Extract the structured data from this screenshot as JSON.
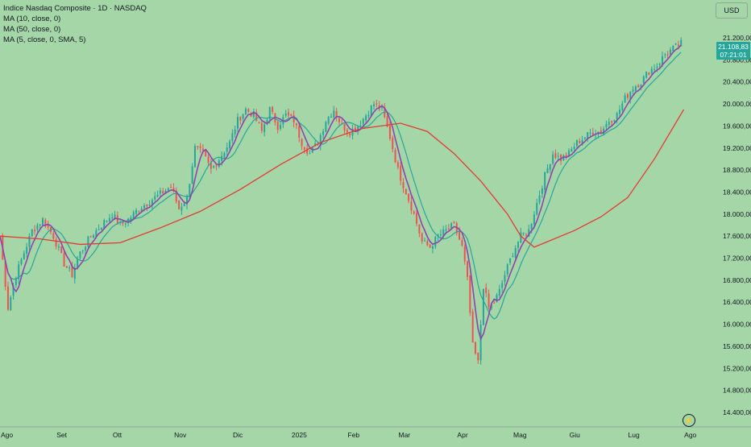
{
  "header": {
    "title": "Indice Nasdaq Composite · 1D · NASDAQ",
    "ma_lines": [
      "MA (10, close, 0)",
      "MA (50, close, 0)",
      "MA (5, close, 0, SMA, 5)"
    ]
  },
  "currency_label": "USD",
  "last_price": {
    "value": "21.108,83",
    "countdown": "07:21:01"
  },
  "colors": {
    "background": "#a5d6a7",
    "up": "#26a69a",
    "down": "#ef5350",
    "ma10": "#26a69a",
    "ma50": "#e53935",
    "ma5": "#8e44ad",
    "text": "#131722"
  },
  "icons": {
    "replay": "lightning-icon"
  },
  "chart_data": {
    "type": "candlestick",
    "title": "Indice Nasdaq Composite · 1D · NASDAQ",
    "y_ticks": [
      "21.200,00",
      "20.800,00",
      "20.400,00",
      "20.000,00",
      "19.600,00",
      "19.200,00",
      "18.800,00",
      "18.400,00",
      "18.000,00",
      "17.600,00",
      "17.200,00",
      "16.800,00",
      "16.400,00",
      "16.000,00",
      "15.600,00",
      "15.200,00",
      "14.800,00",
      "14.400,00"
    ],
    "y_tick_values": [
      21200,
      20800,
      20400,
      20000,
      19600,
      19200,
      18800,
      18400,
      18000,
      17600,
      17200,
      16800,
      16400,
      16000,
      15600,
      15200,
      14800,
      14400
    ],
    "x_ticks": [
      "Ago",
      "Set",
      "Ott",
      "Nov",
      "Dic",
      "2025",
      "Feb",
      "Mar",
      "Apr",
      "Mag",
      "Giu",
      "Lug",
      "Ago"
    ],
    "x_tick_days": [
      0,
      23,
      44,
      67,
      89,
      111,
      132,
      151,
      173,
      194,
      215,
      237,
      258
    ],
    "ylim": [
      14250,
      21450
    ],
    "xlim": [
      0,
      267
    ],
    "close_series": [
      {
        "d": 0,
        "v": 17600
      },
      {
        "d": 3,
        "v": 16300
      },
      {
        "d": 6,
        "v": 16900
      },
      {
        "d": 9,
        "v": 17300
      },
      {
        "d": 12,
        "v": 17700
      },
      {
        "d": 16,
        "v": 17900
      },
      {
        "d": 20,
        "v": 17600
      },
      {
        "d": 24,
        "v": 17100
      },
      {
        "d": 27,
        "v": 16900
      },
      {
        "d": 30,
        "v": 17300
      },
      {
        "d": 34,
        "v": 17600
      },
      {
        "d": 38,
        "v": 17800
      },
      {
        "d": 42,
        "v": 18000
      },
      {
        "d": 45,
        "v": 17800
      },
      {
        "d": 48,
        "v": 17900
      },
      {
        "d": 52,
        "v": 18100
      },
      {
        "d": 55,
        "v": 18200
      },
      {
        "d": 58,
        "v": 18300
      },
      {
        "d": 61,
        "v": 18400
      },
      {
        "d": 64,
        "v": 18500
      },
      {
        "d": 67,
        "v": 18100
      },
      {
        "d": 70,
        "v": 18300
      },
      {
        "d": 73,
        "v": 19200
      },
      {
        "d": 76,
        "v": 19100
      },
      {
        "d": 79,
        "v": 18800
      },
      {
        "d": 82,
        "v": 19000
      },
      {
        "d": 86,
        "v": 19300
      },
      {
        "d": 89,
        "v": 19700
      },
      {
        "d": 92,
        "v": 19900
      },
      {
        "d": 95,
        "v": 19800
      },
      {
        "d": 98,
        "v": 19500
      },
      {
        "d": 101,
        "v": 19900
      },
      {
        "d": 104,
        "v": 19600
      },
      {
        "d": 107,
        "v": 19800
      },
      {
        "d": 110,
        "v": 19700
      },
      {
        "d": 113,
        "v": 19300
      },
      {
        "d": 116,
        "v": 19100
      },
      {
        "d": 119,
        "v": 19300
      },
      {
        "d": 122,
        "v": 19700
      },
      {
        "d": 125,
        "v": 19900
      },
      {
        "d": 128,
        "v": 19600
      },
      {
        "d": 131,
        "v": 19500
      },
      {
        "d": 134,
        "v": 19600
      },
      {
        "d": 137,
        "v": 19800
      },
      {
        "d": 140,
        "v": 20000
      },
      {
        "d": 143,
        "v": 19900
      },
      {
        "d": 146,
        "v": 19400
      },
      {
        "d": 149,
        "v": 18800
      },
      {
        "d": 152,
        "v": 18400
      },
      {
        "d": 155,
        "v": 18000
      },
      {
        "d": 158,
        "v": 17500
      },
      {
        "d": 161,
        "v": 17400
      },
      {
        "d": 164,
        "v": 17600
      },
      {
        "d": 167,
        "v": 17700
      },
      {
        "d": 170,
        "v": 17800
      },
      {
        "d": 173,
        "v": 17400
      },
      {
        "d": 175,
        "v": 16800
      },
      {
        "d": 177,
        "v": 15600
      },
      {
        "d": 179,
        "v": 15300
      },
      {
        "d": 181,
        "v": 16700
      },
      {
        "d": 183,
        "v": 16300
      },
      {
        "d": 185,
        "v": 16400
      },
      {
        "d": 187,
        "v": 16600
      },
      {
        "d": 189,
        "v": 16900
      },
      {
        "d": 192,
        "v": 17300
      },
      {
        "d": 195,
        "v": 17600
      },
      {
        "d": 198,
        "v": 17700
      },
      {
        "d": 201,
        "v": 18200
      },
      {
        "d": 204,
        "v": 18700
      },
      {
        "d": 207,
        "v": 19100
      },
      {
        "d": 210,
        "v": 19000
      },
      {
        "d": 213,
        "v": 19100
      },
      {
        "d": 216,
        "v": 19300
      },
      {
        "d": 219,
        "v": 19400
      },
      {
        "d": 222,
        "v": 19500
      },
      {
        "d": 225,
        "v": 19500
      },
      {
        "d": 228,
        "v": 19700
      },
      {
        "d": 231,
        "v": 19800
      },
      {
        "d": 234,
        "v": 20100
      },
      {
        "d": 237,
        "v": 20300
      },
      {
        "d": 240,
        "v": 20400
      },
      {
        "d": 243,
        "v": 20600
      },
      {
        "d": 246,
        "v": 20700
      },
      {
        "d": 249,
        "v": 20900
      },
      {
        "d": 252,
        "v": 21000
      },
      {
        "d": 255,
        "v": 21100
      }
    ],
    "ma50_series": [
      {
        "d": 0,
        "v": 17600
      },
      {
        "d": 15,
        "v": 17550
      },
      {
        "d": 30,
        "v": 17450
      },
      {
        "d": 45,
        "v": 17480
      },
      {
        "d": 60,
        "v": 17750
      },
      {
        "d": 75,
        "v": 18050
      },
      {
        "d": 90,
        "v": 18450
      },
      {
        "d": 105,
        "v": 18900
      },
      {
        "d": 120,
        "v": 19300
      },
      {
        "d": 135,
        "v": 19550
      },
      {
        "d": 150,
        "v": 19650
      },
      {
        "d": 160,
        "v": 19500
      },
      {
        "d": 170,
        "v": 19100
      },
      {
        "d": 180,
        "v": 18600
      },
      {
        "d": 190,
        "v": 18000
      },
      {
        "d": 195,
        "v": 17600
      },
      {
        "d": 200,
        "v": 17400
      },
      {
        "d": 205,
        "v": 17500
      },
      {
        "d": 215,
        "v": 17700
      },
      {
        "d": 225,
        "v": 17950
      },
      {
        "d": 235,
        "v": 18300
      },
      {
        "d": 245,
        "v": 19000
      },
      {
        "d": 256,
        "v": 19900
      }
    ]
  }
}
